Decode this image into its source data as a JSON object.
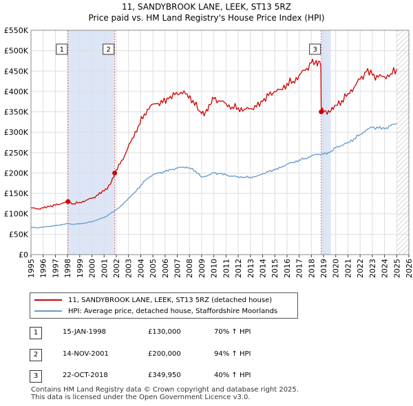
{
  "header": {
    "line1": "11, SANDYBROOK LANE, LEEK, ST13 5RZ",
    "line2": "Price paid vs. HM Land Registry's House Price Index (HPI)"
  },
  "colors": {
    "property": "#cc0000",
    "hpi": "#6699cc",
    "shade": "#dde6f7",
    "grid": "#dddddd",
    "marker_line": "#dd6666"
  },
  "chart_data": {
    "type": "line",
    "title": "11, SANDYBROOK LANE, LEEK, ST13 5RZ — Price paid vs. HM Land Registry's House Price Index (HPI)",
    "xlabel": "",
    "ylabel": "",
    "xlim": [
      1995,
      2026
    ],
    "ylim": [
      0,
      550000
    ],
    "grid": true,
    "legend_position": "below",
    "y_ticks": [
      {
        "value": 0,
        "label": "£0"
      },
      {
        "value": 50000,
        "label": "£50K"
      },
      {
        "value": 100000,
        "label": "£100K"
      },
      {
        "value": 150000,
        "label": "£150K"
      },
      {
        "value": 200000,
        "label": "£200K"
      },
      {
        "value": 250000,
        "label": "£250K"
      },
      {
        "value": 300000,
        "label": "£300K"
      },
      {
        "value": 350000,
        "label": "£350K"
      },
      {
        "value": 400000,
        "label": "£400K"
      },
      {
        "value": 450000,
        "label": "£450K"
      },
      {
        "value": 500000,
        "label": "£500K"
      },
      {
        "value": 550000,
        "label": "£550K"
      }
    ],
    "x_ticks": [
      "1995",
      "1996",
      "1997",
      "1998",
      "1999",
      "2000",
      "2001",
      "2002",
      "2003",
      "2004",
      "2005",
      "2006",
      "2007",
      "2008",
      "2009",
      "2010",
      "2011",
      "2012",
      "2013",
      "2014",
      "2015",
      "2016",
      "2017",
      "2018",
      "2019",
      "2020",
      "2021",
      "2022",
      "2023",
      "2024",
      "2025",
      "2026"
    ],
    "shaded_ranges": [
      [
        1998.04,
        2001.87
      ],
      [
        2018.81,
        2019.6
      ]
    ],
    "hatched_from": 2025.0,
    "sales": [
      {
        "label": "1",
        "x": 1998.04,
        "y": 130000
      },
      {
        "label": "2",
        "x": 2001.87,
        "y": 200000
      },
      {
        "label": "3",
        "x": 2018.81,
        "y": 349950
      }
    ],
    "series": [
      {
        "name": "11, SANDYBROOK LANE, LEEK, ST13 5RZ (detached house)",
        "x": [
          1995.0,
          1995.5,
          1996.0,
          1996.5,
          1997.0,
          1997.5,
          1998.04,
          1998.5,
          1999.0,
          1999.5,
          2000.0,
          2000.5,
          2001.0,
          2001.5,
          2001.87,
          2002.3,
          2002.8,
          2003.3,
          2003.8,
          2004.3,
          2004.8,
          2005.3,
          2005.8,
          2006.3,
          2006.8,
          2007.3,
          2007.8,
          2008.3,
          2008.8,
          2009.2,
          2009.6,
          2010.0,
          2010.5,
          2011.0,
          2011.5,
          2012.0,
          2012.5,
          2013.0,
          2013.5,
          2014.0,
          2014.5,
          2015.0,
          2015.5,
          2016.0,
          2016.5,
          2017.0,
          2017.5,
          2018.0,
          2018.4,
          2018.78,
          2018.81,
          2019.2,
          2019.6,
          2020.0,
          2020.5,
          2021.0,
          2021.5,
          2022.0,
          2022.5,
          2023.0,
          2023.5,
          2024.0,
          2024.5,
          2025.0
        ],
        "values": [
          115000,
          112000,
          114000,
          118000,
          121000,
          125000,
          130000,
          125000,
          128000,
          133000,
          138000,
          146000,
          156000,
          172000,
          200000,
          222000,
          250000,
          285000,
          315000,
          345000,
          365000,
          370000,
          372000,
          382000,
          392000,
          398000,
          394000,
          378000,
          352000,
          340000,
          368000,
          382000,
          376000,
          370000,
          362000,
          360000,
          356000,
          358000,
          362000,
          375000,
          390000,
          400000,
          405000,
          420000,
          425000,
          440000,
          452000,
          470000,
          476000,
          462000,
          349950,
          352000,
          352000,
          366000,
          378000,
          395000,
          410000,
          430000,
          448000,
          440000,
          435000,
          436000,
          443000,
          455000
        ]
      },
      {
        "name": "HPI: Average price, detached house, Staffordshire Moorlands",
        "x": [
          1995.0,
          1995.5,
          1996.0,
          1996.5,
          1997.0,
          1997.5,
          1998.0,
          1998.5,
          1999.0,
          1999.5,
          2000.0,
          2000.5,
          2001.0,
          2001.5,
          2002.0,
          2002.5,
          2003.0,
          2003.5,
          2004.0,
          2004.5,
          2005.0,
          2005.5,
          2006.0,
          2006.5,
          2007.0,
          2007.5,
          2008.0,
          2008.5,
          2009.0,
          2009.5,
          2010.0,
          2010.5,
          2011.0,
          2011.5,
          2012.0,
          2012.5,
          2013.0,
          2013.5,
          2014.0,
          2014.5,
          2015.0,
          2015.5,
          2016.0,
          2016.5,
          2017.0,
          2017.5,
          2018.0,
          2018.5,
          2019.0,
          2019.5,
          2020.0,
          2020.5,
          2021.0,
          2021.5,
          2022.0,
          2022.5,
          2023.0,
          2023.5,
          2024.0,
          2024.5,
          2025.0
        ],
        "values": [
          67000,
          66000,
          67500,
          69000,
          71000,
          73000,
          76000,
          74000,
          76000,
          78000,
          81000,
          86000,
          91000,
          100000,
          110000,
          122000,
          138000,
          152000,
          170000,
          186000,
          196000,
          200000,
          203000,
          208000,
          212000,
          215000,
          213000,
          205000,
          190000,
          194000,
          200000,
          198000,
          195000,
          192000,
          191000,
          190000,
          190000,
          192000,
          198000,
          203000,
          208000,
          213000,
          222000,
          226000,
          232000,
          236000,
          242000,
          246000,
          246000,
          250000,
          262000,
          268000,
          275000,
          284000,
          295000,
          305000,
          312000,
          310000,
          308000,
          316000,
          322000
        ]
      }
    ]
  },
  "legend": {
    "items": [
      {
        "label": "11, SANDYBROOK LANE, LEEK, ST13 5RZ (detached house)"
      },
      {
        "label": "HPI: Average price, detached house, Staffordshire Moorlands"
      }
    ]
  },
  "transactions": [
    {
      "num": "1",
      "date": "15-JAN-1998",
      "price": "£130,000",
      "delta": "70% ↑ HPI"
    },
    {
      "num": "2",
      "date": "14-NOV-2001",
      "price": "£200,000",
      "delta": "94% ↑ HPI"
    },
    {
      "num": "3",
      "date": "22-OCT-2018",
      "price": "£349,950",
      "delta": "40% ↑ HPI"
    }
  ],
  "footer": {
    "line1": "Contains HM Land Registry data © Crown copyright and database right 2025.",
    "line2": "This data is licensed under the Open Government Licence v3.0."
  }
}
